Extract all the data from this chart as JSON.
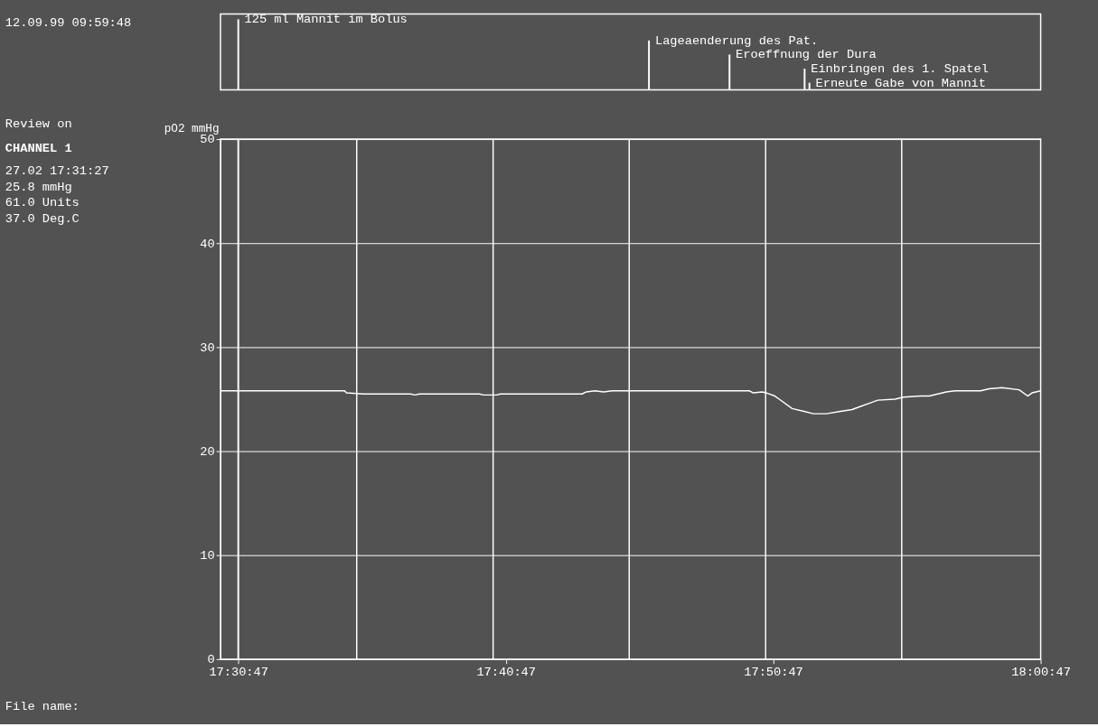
{
  "chart_data": {
    "type": "line",
    "ylabel": "pO2 mmHg",
    "x": [
      17.502,
      17.5794,
      17.5805,
      17.5912,
      17.6205,
      17.6232,
      17.6259,
      17.6633,
      17.6659,
      17.6739,
      17.6766,
      17.7273,
      17.73,
      17.7354,
      17.7407,
      17.746,
      17.8315,
      17.8341,
      17.8395,
      17.8422,
      17.8475,
      17.8502,
      17.8582,
      17.8662,
      17.8715,
      17.8795,
      17.8875,
      17.8956,
      17.9009,
      17.9062,
      17.9116,
      17.9223,
      17.9276,
      17.9383,
      17.9436,
      17.949,
      17.9543,
      17.9596,
      17.9756,
      17.981,
      17.989,
      17.9997,
      18.005,
      18.0077,
      18.0131
    ],
    "series": [
      {
        "color": "#ffffff",
        "values": [
          25.8,
          25.8,
          25.6,
          25.5,
          25.5,
          25.4,
          25.5,
          25.5,
          25.4,
          25.4,
          25.5,
          25.5,
          25.7,
          25.8,
          25.7,
          25.8,
          25.8,
          25.6,
          25.7,
          25.6,
          25.3,
          25.0,
          24.1,
          23.8,
          23.6,
          23.6,
          23.8,
          24.0,
          24.3,
          24.6,
          24.9,
          25.0,
          25.2,
          25.3,
          25.3,
          25.5,
          25.7,
          25.8,
          25.8,
          26.0,
          26.1,
          25.9,
          25.3,
          25.6,
          25.8
        ]
      }
    ],
    "xlim": [
      17.502,
      18.0131
    ],
    "xticks": [
      {
        "value": 17.5131,
        "label": "17:30:47"
      },
      {
        "value": 17.6798,
        "label": "17:40:47"
      },
      {
        "value": 17.8464,
        "label": "17:50:47"
      },
      {
        "value": 18.0131,
        "label": "18:00:47"
      },
      {
        "value": 17.5869,
        "label": null
      },
      {
        "value": 17.6719,
        "label": null
      },
      {
        "value": 17.7567,
        "label": null
      },
      {
        "value": 17.8417,
        "label": null
      },
      {
        "value": 17.9265,
        "label": null
      }
    ],
    "ylim": [
      0,
      50
    ],
    "yticks": [
      0,
      10,
      20,
      30,
      40,
      50
    ],
    "grid": true,
    "line_style": "solid",
    "marker": "none",
    "ref_lines": [
      {
        "axis": "x",
        "value": 17.5131,
        "label": null,
        "color": "#ffffff"
      },
      {
        "axis": "x",
        "value": 17.5131,
        "label": "125 ml Mannit im Bolus"
      },
      {
        "axis": "x",
        "value": 17.769,
        "label": "Lageaenderung des Pat."
      },
      {
        "axis": "x",
        "value": 17.8192,
        "label": "Eroeffnung der Dura"
      },
      {
        "axis": "x",
        "value": 17.866,
        "label": "Einbringen des 1. Spatel"
      },
      {
        "axis": "x",
        "value": 17.869,
        "label": "Erneute Gabe von Mannit"
      }
    ],
    "annotations": [
      "12.09.99 09:59:48",
      "Review  on",
      "CHANNEL 1",
      "27.02 17:31:27",
      "25.8 mmHg",
      "61.0 Units",
      "37.0 Deg.C",
      "File name:"
    ]
  }
}
